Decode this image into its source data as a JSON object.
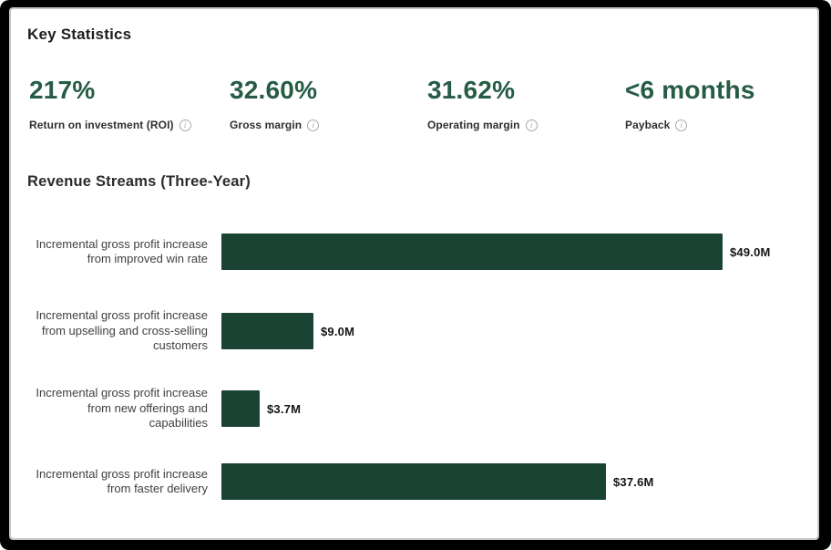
{
  "colors": {
    "frame_background": "#000000",
    "card_background": "#ffffff",
    "stat_green": "#265c46",
    "bar_green": "#1b4334",
    "heading_text": "#1d1d1d",
    "label_gray": "#3f3f3f",
    "info_icon_gray": "#a8a8a8"
  },
  "icons": {
    "info_glyph": "i"
  },
  "key_statistics": {
    "title": "Key Statistics",
    "stats": [
      {
        "value": "217%",
        "label": "Return on investment (ROI)"
      },
      {
        "value": "32.60%",
        "label": "Gross margin"
      },
      {
        "value": "31.62%",
        "label": "Operating margin"
      },
      {
        "value": "<6 months",
        "label": "Payback"
      }
    ]
  },
  "chart_data": {
    "type": "bar",
    "orientation": "horizontal",
    "title": "Revenue Streams (Three-Year)",
    "categories": [
      "Incremental gross profit increase\nfrom improved win rate",
      "Incremental gross profit increase\nfrom upselling and cross-selling\ncustomers",
      "Incremental gross profit increase\nfrom new offerings and\ncapabilities",
      "Incremental gross profit increase\nfrom faster delivery"
    ],
    "values": [
      49.0,
      9.0,
      3.7,
      37.6
    ],
    "value_labels": [
      "$49.0M",
      "$9.0M",
      "$3.7M",
      "$37.6M"
    ],
    "xlim": [
      0,
      49
    ],
    "grid": false,
    "legend": false,
    "bar_color": "#1b4334"
  }
}
